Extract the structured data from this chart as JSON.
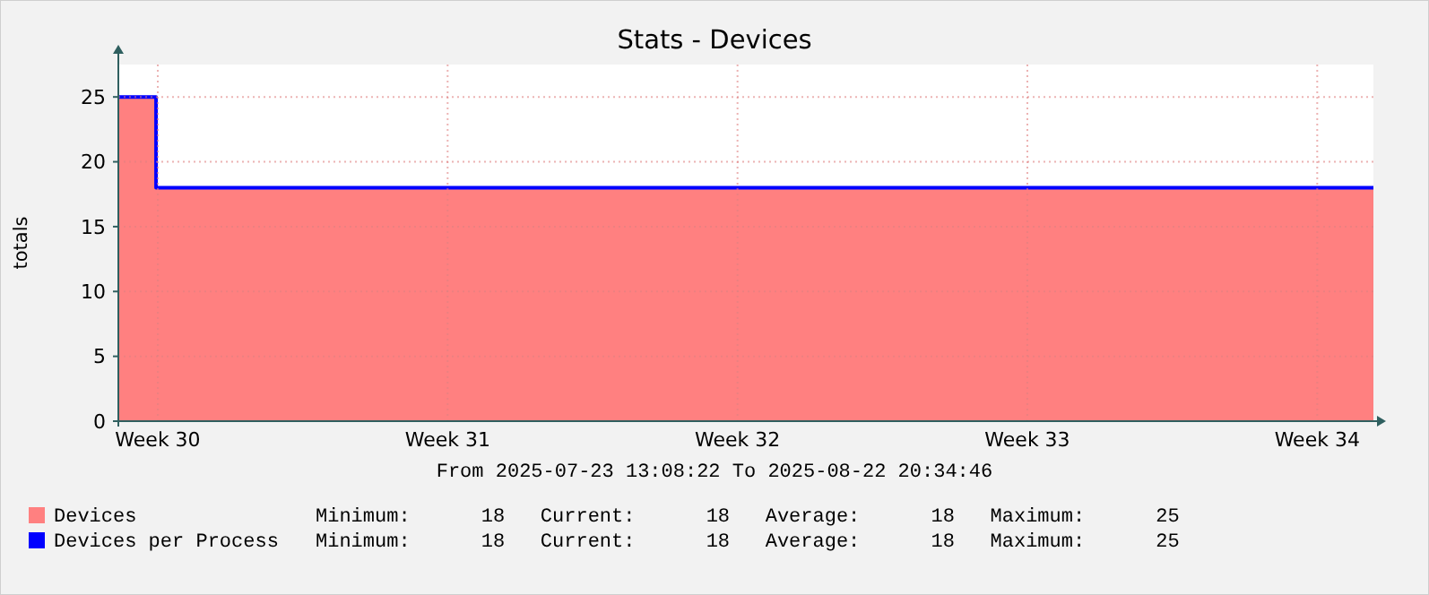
{
  "chart_data": {
    "type": "step",
    "title": "Stats - Devices",
    "ylabel": "totals",
    "x": [
      "2025-07-23T13:08",
      "2025-07-24T11:00",
      "2025-08-22T20:34"
    ],
    "series": [
      {
        "name": "Devices",
        "type": "area",
        "color": "#ff8080",
        "values": [
          25,
          18,
          18
        ]
      },
      {
        "name": "Devices per Process",
        "type": "step",
        "color": "#0000ff",
        "values": [
          25,
          18,
          18
        ]
      }
    ],
    "xlim": [
      "2025-07-23T13:08",
      "2025-08-22T20:34"
    ],
    "xticks": [
      {
        "value": "2025-07-24T12:00",
        "label": "Week 30"
      },
      {
        "value": "2025-07-31T12:00",
        "label": "Week 31"
      },
      {
        "value": "2025-08-07T12:00",
        "label": "Week 32"
      },
      {
        "value": "2025-08-14T12:00",
        "label": "Week 33"
      },
      {
        "value": "2025-08-21T12:00",
        "label": "Week 34"
      }
    ],
    "ylim": [
      0,
      27.5
    ],
    "yticks": [
      0,
      5,
      10,
      15,
      20,
      25
    ],
    "grid": true,
    "legend": "bottom",
    "annotations": [
      "From 2025-07-23 13:08:22 To 2025-08-22 20:34:46",
      "Minimum:      18   Current:      18   Average:      18   Maximum:      25",
      "Minimum:      18   Current:      18   Average:      18   Maximum:      25"
    ]
  }
}
